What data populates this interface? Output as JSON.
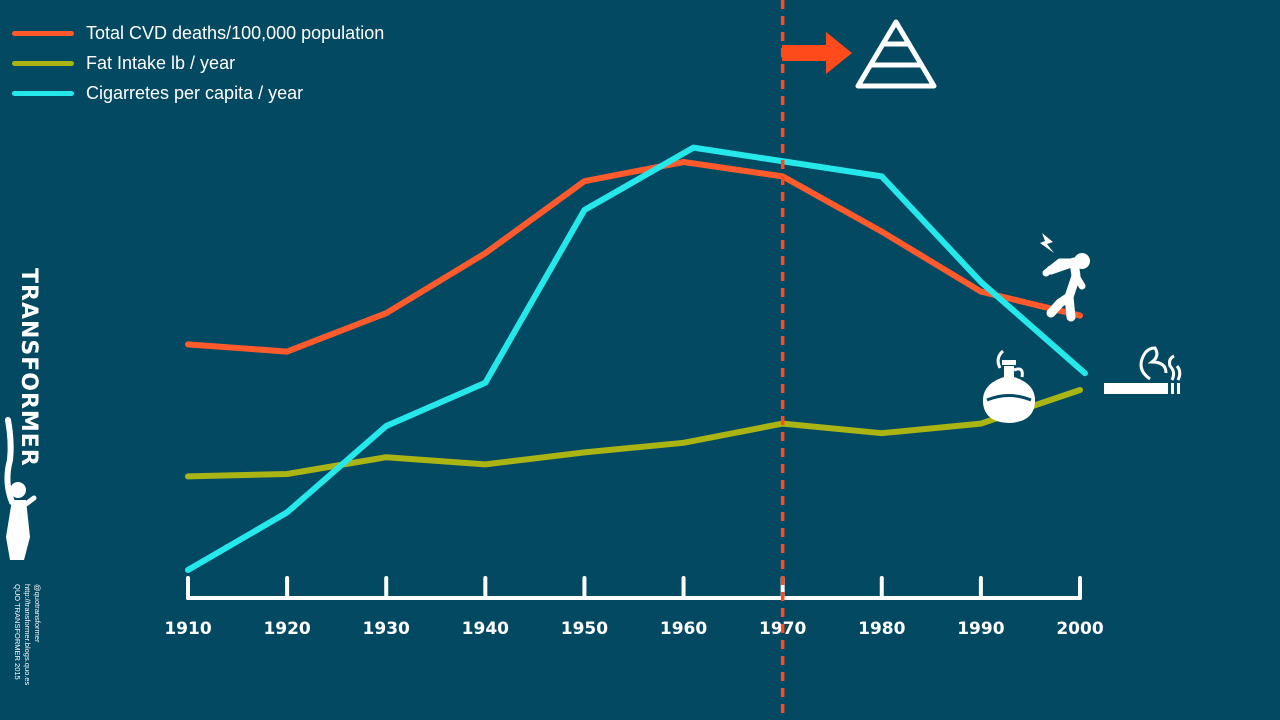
{
  "colors": {
    "background": "#044962",
    "cvd": "#FF5A2C",
    "fat": "#AAB413",
    "cigarettes": "#25E8EB",
    "axis": "#FFFFFF",
    "marker": "#FF4A1C"
  },
  "brand": {
    "name": "TRANSFORMER",
    "credit_lines": [
      "QUO TRANSFORMER 2015",
      "http://transformer.blogs.quo.es",
      "@quotransformer"
    ]
  },
  "icons": [
    {
      "name": "food-pyramid-icon",
      "color": "#FFFFFF"
    },
    {
      "name": "arrow-right-icon",
      "color": "#FF4A1C"
    },
    {
      "name": "heart-attack-person-icon",
      "color": "#FFFFFF"
    },
    {
      "name": "cigarette-icon",
      "color": "#FFFFFF"
    },
    {
      "name": "oil-flask-icon",
      "color": "#FFFFFF"
    }
  ],
  "chart_data": {
    "type": "line",
    "title": "",
    "xlabel": "",
    "ylabel": "",
    "x": [
      1910,
      1920,
      1930,
      1940,
      1950,
      1960,
      1970,
      1980,
      1990,
      2000
    ],
    "xlim": [
      1910,
      2000
    ],
    "ylim": [
      0,
      100
    ],
    "y_axis_shown": false,
    "grid": false,
    "legend_position": "top-left",
    "highlight_year": 1970,
    "highlight_year_label": "1970",
    "series": [
      {
        "name": "Total CVD deaths/100,000 population",
        "color": "#FF5A2C",
        "x": [
          1910,
          1920,
          1930,
          1940,
          1950,
          1960,
          1970,
          1980,
          1990,
          2000
        ],
        "values": [
          47,
          45.5,
          53.5,
          66,
          81,
          85,
          82,
          70.5,
          58,
          53
        ]
      },
      {
        "name": "Fat Intake lb / year",
        "color": "#AAB413",
        "x": [
          1910,
          1920,
          1930,
          1940,
          1950,
          1960,
          1970,
          1980,
          1990,
          2000
        ],
        "values": [
          19.5,
          20,
          23.5,
          22,
          24.5,
          26.5,
          30.5,
          28.5,
          30.5,
          37.5
        ]
      },
      {
        "name": "Cigarretes per capita / year",
        "color": "#25E8EB",
        "x": [
          1910,
          1920,
          1930,
          1940,
          1950,
          1961,
          1980,
          1990,
          2000.5
        ],
        "values": [
          0,
          12,
          30,
          39,
          75,
          88,
          82,
          60,
          41
        ]
      }
    ]
  }
}
